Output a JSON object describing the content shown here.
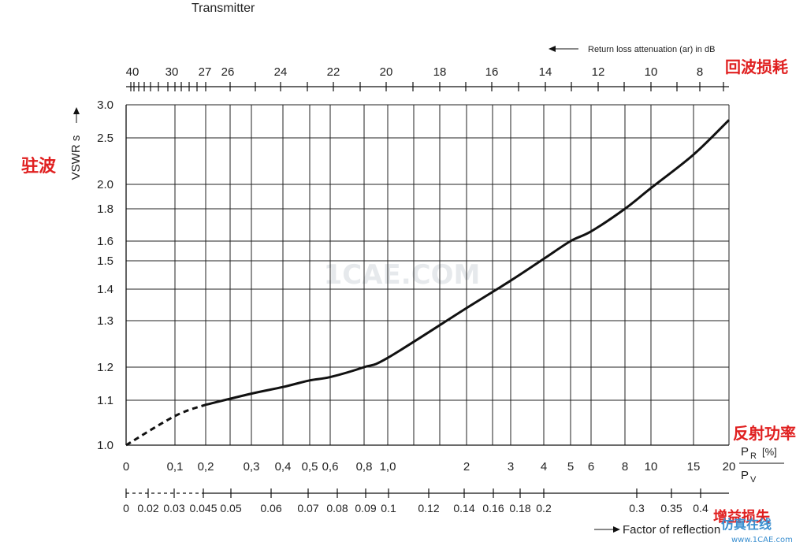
{
  "texts": {
    "transmitter": "Transmitter",
    "return_loss_label": "Return loss attenuation (ar) in dB",
    "return_loss_cn": "回波损耗",
    "vswr_label": "VSWR s",
    "vswr_cn": "驻波",
    "reflected_power_cn": "反射功率",
    "pr_numerator": "P",
    "pr_sub": "R",
    "pr_unit": "[%]",
    "pv_denominator": "P",
    "pv_sub": "V",
    "factor_label": "Factor of reflection",
    "factor_cn": "增益损失",
    "watermark_center": "1CAE.COM",
    "watermark_logo": "仿真在线",
    "watermark_url": "www.1CAE.com"
  },
  "chart_data": {
    "type": "line",
    "y_axis": {
      "label": "VSWR s",
      "range": [
        1.0,
        3.0
      ],
      "ticks": [
        "1.0",
        "1.1",
        "1.2",
        "1.3",
        "1.4",
        "1.5",
        "1.6",
        "1.8",
        "2.0",
        "2.5",
        "3.0"
      ]
    },
    "x_axis_bottom": {
      "label": "PR/PV [%]",
      "ticks": [
        "0",
        "0,1",
        "0,2",
        "0,3",
        "0,4",
        "0,5",
        "0,6",
        "0,8",
        "1,0",
        "2",
        "3",
        "4",
        "5",
        "6",
        "8",
        "10",
        "15",
        "20"
      ]
    },
    "x_axis_top": {
      "label": "Return loss attenuation (ar) in dB",
      "ticks": [
        "40",
        "30",
        "27",
        "26",
        "24",
        "22",
        "20",
        "18",
        "16",
        "14",
        "12",
        "10",
        "8"
      ]
    },
    "x_axis_factor": {
      "label": "Factor of reflection",
      "ticks": [
        "0",
        "0.02",
        "0.03",
        "0.045",
        "0.05",
        "0.06",
        "0.07",
        "0.08",
        "0.09",
        "0.1",
        "0.12",
        "0.14",
        "0.16",
        "0.18",
        "0.2",
        "0.3",
        "0.35",
        "0.4"
      ]
    },
    "series": [
      {
        "style": "dashed",
        "x": [
          "0",
          "0,1",
          "0,2"
        ],
        "y": [
          1.0,
          1.065,
          1.09
        ]
      },
      {
        "style": "solid",
        "x": [
          "0,2",
          "0,3",
          "0,4",
          "0,5",
          "0,6",
          "0,8",
          "1,0",
          "2",
          "3",
          "4",
          "5",
          "6",
          "8",
          "10",
          "15",
          "20"
        ],
        "y": [
          1.09,
          1.12,
          1.14,
          1.16,
          1.17,
          1.2,
          1.22,
          1.34,
          1.43,
          1.51,
          1.6,
          1.66,
          1.8,
          1.97,
          2.32,
          2.77
        ]
      }
    ],
    "grid": true
  }
}
